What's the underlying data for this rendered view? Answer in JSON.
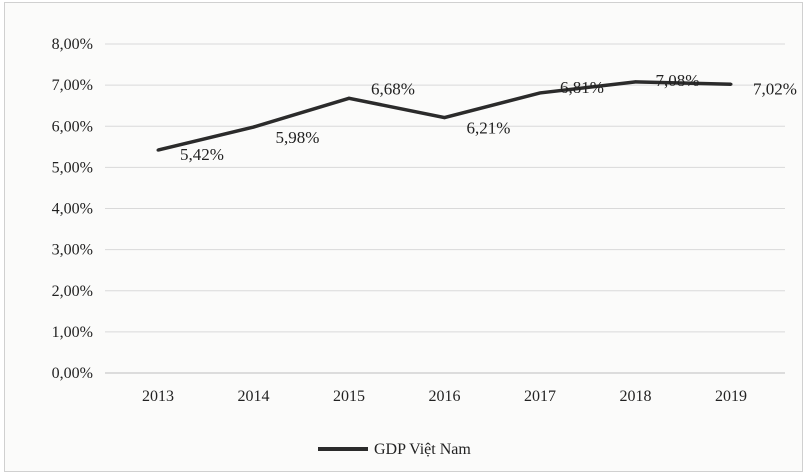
{
  "chart_data": {
    "type": "line",
    "title": "",
    "xlabel": "",
    "ylabel": "",
    "categories": [
      "2013",
      "2014",
      "2015",
      "2016",
      "2017",
      "2018",
      "2019"
    ],
    "series": [
      {
        "name": "GDP Việt Nam",
        "values": [
          5.42,
          5.98,
          6.68,
          6.21,
          6.81,
          7.08,
          7.02
        ],
        "labels": [
          "5,42%",
          "5,98%",
          "6,68%",
          "6,21%",
          "6,81%",
          "7,08%",
          "7,02%"
        ],
        "color": "#2b2b2b"
      }
    ],
    "ylim": [
      0,
      8
    ],
    "yticks": [
      "0,00%",
      "1,00%",
      "2,00%",
      "3,00%",
      "4,00%",
      "5,00%",
      "6,00%",
      "7,00%",
      "8,00%"
    ],
    "grid": true,
    "legend_position": "bottom"
  }
}
